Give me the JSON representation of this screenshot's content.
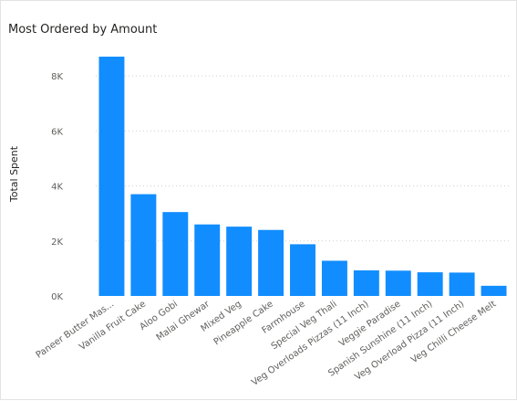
{
  "header": {
    "title": "Most Ordered by Amount"
  },
  "chart_data": {
    "type": "bar",
    "title": "Most Ordered by Amount",
    "xlabel": "",
    "ylabel": "Total Spent",
    "ylim": [
      0,
      9000
    ],
    "yticks": [
      0,
      2000,
      4000,
      6000,
      8000
    ],
    "ytick_labels": [
      "0K",
      "2K",
      "4K",
      "6K",
      "8K"
    ],
    "grid": true,
    "bar_color": "#118DFF",
    "categories": [
      "Paneer Butter Mas...",
      "Vanilla Fruit Cake",
      "Aloo Gobi",
      "Malai Ghewar",
      "Mixed Veg",
      "Pineapple Cake",
      "Farmhouse",
      "Special Veg Thali",
      "Veg Overloads Pizzas (11 Inch)",
      "Veggie Paradise",
      "Spanish Sunshine (11 Inch)",
      "Veg Overload Pizza (11 Inch)",
      "Veg Chilli Cheese Melt"
    ],
    "values": [
      8700,
      3700,
      3050,
      2600,
      2520,
      2400,
      1880,
      1280,
      930,
      920,
      860,
      850,
      370
    ]
  }
}
